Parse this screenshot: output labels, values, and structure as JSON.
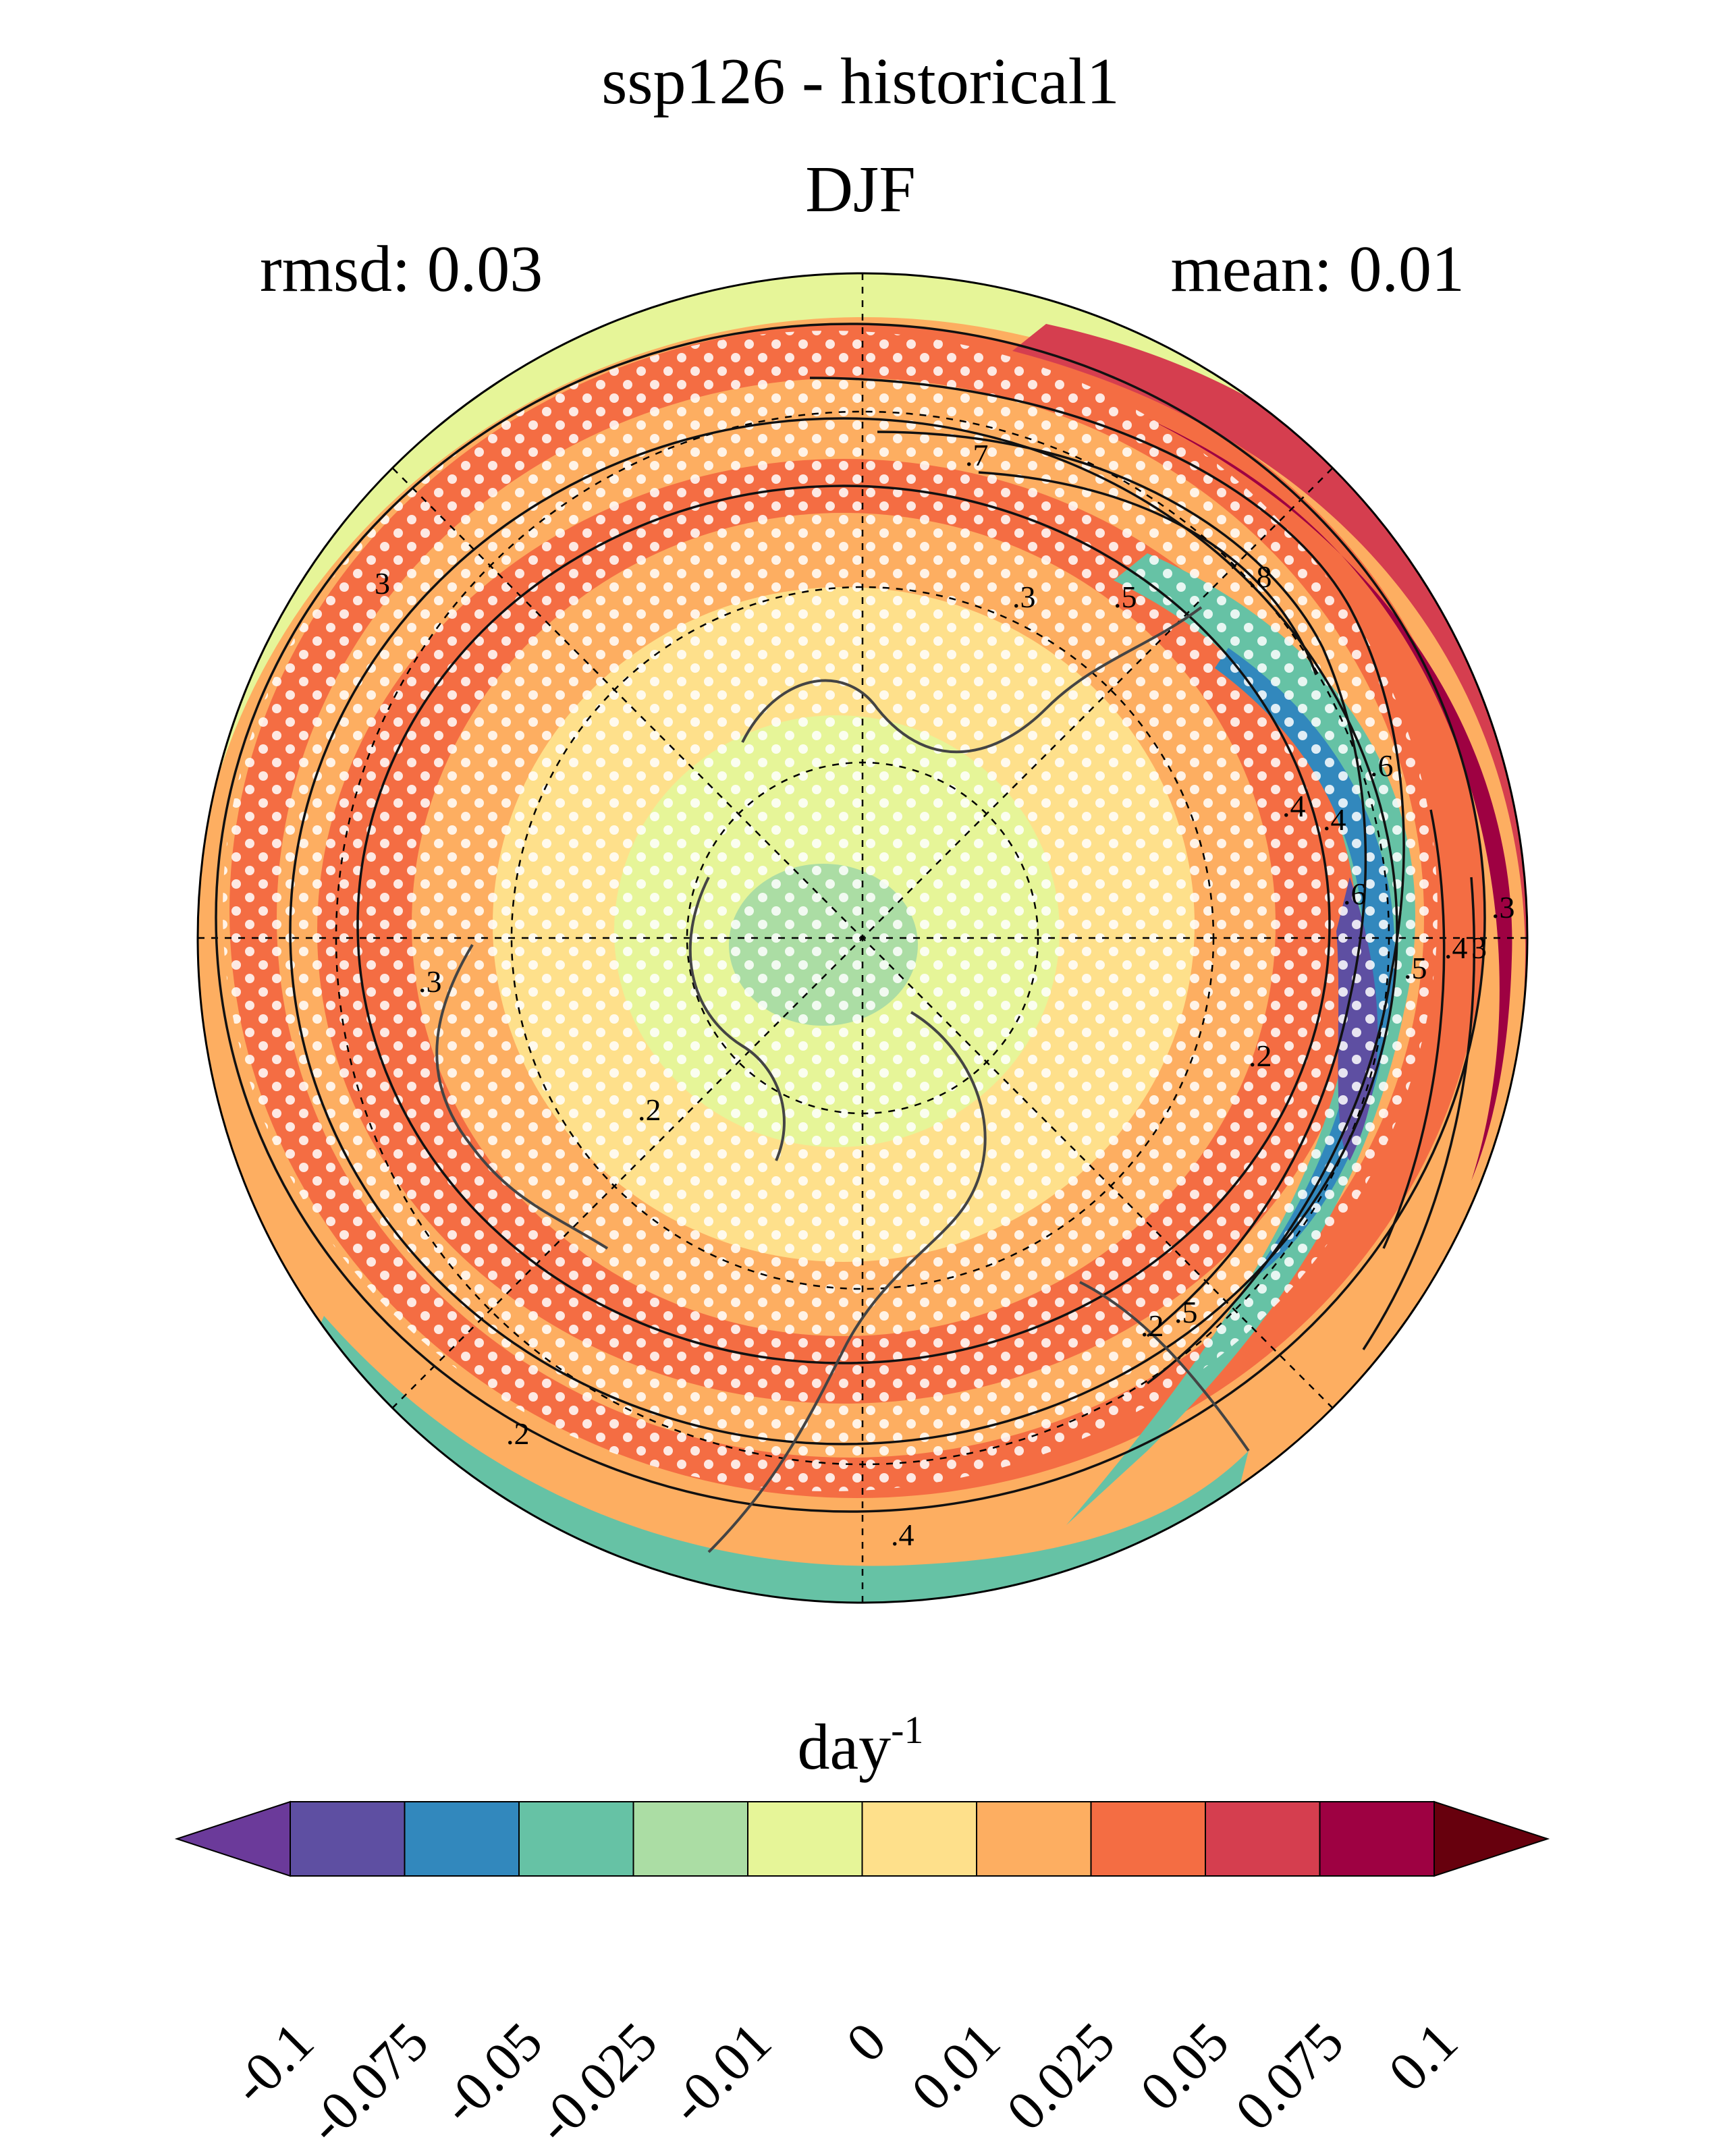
{
  "title": "ssp126 - historical1",
  "subtitle": "DJF",
  "stats": {
    "rmsd": "rmsd: 0.03",
    "mean": "mean: 0.01"
  },
  "colorbar": {
    "unit_base": "day",
    "unit_exp": "-1",
    "ticks": [
      "-0.1",
      "-0.075",
      "-0.05",
      "-0.025",
      "-0.01",
      "0",
      "0.01",
      "0.025",
      "0.05",
      "0.075",
      "0.1"
    ],
    "colors": [
      "#5e4fa2",
      "#3288bd",
      "#66c2a5",
      "#abdda4",
      "#e6f598",
      "#fee08b",
      "#fdae61",
      "#f46d43",
      "#d53e4f",
      "#9e0142"
    ],
    "under_color": "#6b3a9a",
    "over_color": "#67000d"
  },
  "contour_labels": [
    ".7",
    ".3",
    ".5",
    ".8",
    "3",
    ".6",
    ".4",
    ".6",
    ".3",
    ".4",
    ".2",
    ".5",
    ".4",
    ".2",
    ".2",
    ".3",
    ".2",
    "3",
    ".5",
    ".4"
  ],
  "icons": [
    "north-polar-stereographic-map",
    "stippling-dots",
    "coastline"
  ],
  "accent_color": "#f46d43"
}
